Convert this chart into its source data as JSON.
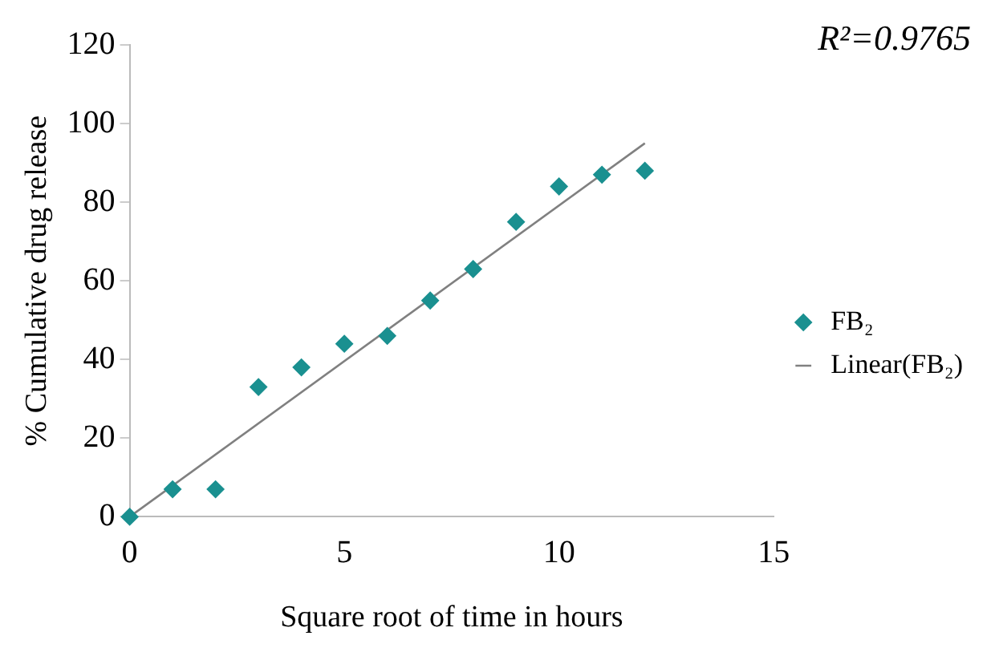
{
  "chart_data": {
    "type": "scatter",
    "xlabel": "Square root of time in hours",
    "ylabel": "% Cumulative drug release",
    "annotations": [
      "R²=0.9765"
    ],
    "series": [
      {
        "name": "FB₂",
        "color": "#1a9090",
        "marker": "diamond",
        "x": [
          0,
          1,
          2,
          3,
          4,
          5,
          6,
          7,
          8,
          9,
          10,
          11,
          12
        ],
        "values": [
          0,
          7,
          7,
          33,
          38,
          44,
          46,
          55,
          63,
          75,
          84,
          87,
          88
        ]
      },
      {
        "name": "Linear(FB₂)",
        "type": "line",
        "color": "#808080",
        "x": [
          0,
          12
        ],
        "values": [
          0,
          95
        ]
      }
    ],
    "xlim": [
      0,
      15
    ],
    "xticks": [
      0,
      5,
      10,
      15
    ],
    "ylim": [
      0,
      120
    ],
    "yticks": [
      0,
      20,
      40,
      60,
      80,
      100,
      120
    ],
    "grid": false,
    "legend": "right"
  }
}
